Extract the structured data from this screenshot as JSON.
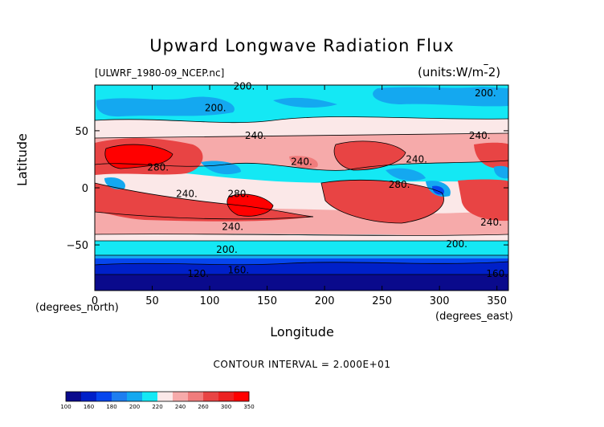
{
  "chart_data": {
    "type": "heatmap",
    "title": "Upward Longwave Radiation Flux",
    "dataset_label": "[ULWRF_1980-09_NCEP.nc]",
    "units_label": "(units:W/m^2)",
    "xlabel": "Longitude",
    "ylabel": "Latitude",
    "x_units": "(degrees_east)",
    "y_units": "(degrees_north)",
    "xlim": [
      0,
      360
    ],
    "ylim": [
      -90,
      90
    ],
    "x_ticks": [
      0,
      50,
      100,
      150,
      200,
      250,
      300,
      350
    ],
    "y_ticks": [
      -50,
      0,
      50
    ],
    "contour_interval_label": "CONTOUR INTERVAL = 2.000E+01",
    "colorbar": {
      "levels": [
        100,
        160,
        180,
        200,
        220,
        240,
        260,
        300,
        350
      ],
      "bins": [
        {
          "from": 100,
          "to": 120,
          "color": "#0a0a8c"
        },
        {
          "from": 120,
          "to": 140,
          "color": "#0020c8"
        },
        {
          "from": 140,
          "to": 160,
          "color": "#0646ee"
        },
        {
          "from": 160,
          "to": 180,
          "color": "#1e7ef0"
        },
        {
          "from": 180,
          "to": 200,
          "color": "#14a8f0"
        },
        {
          "from": 200,
          "to": 220,
          "color": "#14e8f4"
        },
        {
          "from": 220,
          "to": 240,
          "color": "#fbe8e8"
        },
        {
          "from": 240,
          "to": 250,
          "color": "#f6aaaa"
        },
        {
          "from": 250,
          "to": 260,
          "color": "#f07c7c"
        },
        {
          "from": 260,
          "to": 280,
          "color": "#e84444"
        },
        {
          "from": 280,
          "to": 300,
          "color": "#ec2222"
        },
        {
          "from": 300,
          "to": 350,
          "color": "#ff0000"
        }
      ]
    },
    "contour_labels": [
      {
        "text": "200.",
        "lon": 130,
        "lat": 86
      },
      {
        "text": "200.",
        "lon": 105,
        "lat": 67
      },
      {
        "text": "200.",
        "lon": 340,
        "lat": 80
      },
      {
        "text": "240.",
        "lon": 140,
        "lat": 43
      },
      {
        "text": "240.",
        "lon": 335,
        "lat": 43
      },
      {
        "text": "280.",
        "lon": 55,
        "lat": 15
      },
      {
        "text": "240.",
        "lon": 180,
        "lat": 20
      },
      {
        "text": "240.",
        "lon": 280,
        "lat": 22
      },
      {
        "text": "240.",
        "lon": 80,
        "lat": -8
      },
      {
        "text": "280.",
        "lon": 125,
        "lat": -8
      },
      {
        "text": "280.",
        "lon": 265,
        "lat": 0
      },
      {
        "text": "240.",
        "lon": 120,
        "lat": -37
      },
      {
        "text": "240.",
        "lon": 345,
        "lat": -33
      },
      {
        "text": "200.",
        "lon": 115,
        "lat": -57
      },
      {
        "text": "200.",
        "lon": 315,
        "lat": -52
      },
      {
        "text": "160.",
        "lon": 125,
        "lat": -75
      },
      {
        "text": "120.",
        "lon": 90,
        "lat": -78
      },
      {
        "text": "160.",
        "lon": 350,
        "lat": -78
      }
    ],
    "grid": false,
    "legend": "bottom-left"
  },
  "colors": {
    "c100": "#0a0a8c",
    "c120": "#0020c8",
    "c140": "#0646ee",
    "c160": "#1e7ef0",
    "c180": "#14a8f0",
    "c200": "#14e8f4",
    "c220": "#fbe8e8",
    "c240": "#f6aaaa",
    "c250": "#f07c7c",
    "c260": "#e84444",
    "c280": "#ec2222",
    "c300": "#ff0000"
  }
}
